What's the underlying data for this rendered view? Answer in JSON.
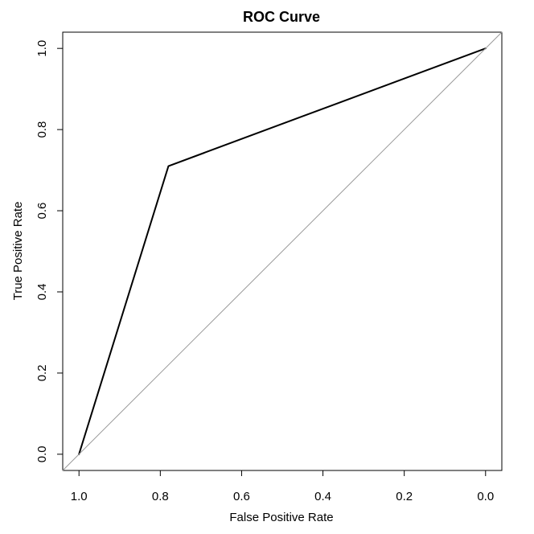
{
  "chart_data": {
    "type": "line",
    "title": "ROC Curve",
    "xlabel": "False Positive Rate",
    "ylabel": "True Positive Rate",
    "x_reversed": true,
    "xlim": [
      1.04,
      -0.04
    ],
    "ylim": [
      -0.04,
      1.04
    ],
    "x_ticks": [
      1.0,
      0.8,
      0.6,
      0.4,
      0.2,
      0.0
    ],
    "x_tick_labels": [
      "1.0",
      "0.8",
      "0.6",
      "0.4",
      "0.2",
      "0.0"
    ],
    "y_ticks": [
      0.0,
      0.2,
      0.4,
      0.6,
      0.8,
      1.0
    ],
    "y_tick_labels": [
      "0.0",
      "0.2",
      "0.4",
      "0.6",
      "0.8",
      "1.0"
    ],
    "grid": false,
    "legend": "none",
    "series": [
      {
        "role": "roc",
        "color": "#000000",
        "x": [
          1.0,
          0.78,
          0.0
        ],
        "y": [
          0.0,
          0.71,
          1.0
        ]
      },
      {
        "role": "chance-diagonal",
        "color": "#999999",
        "x": [
          1.04,
          -0.04
        ],
        "y": [
          -0.04,
          1.04
        ]
      }
    ]
  }
}
